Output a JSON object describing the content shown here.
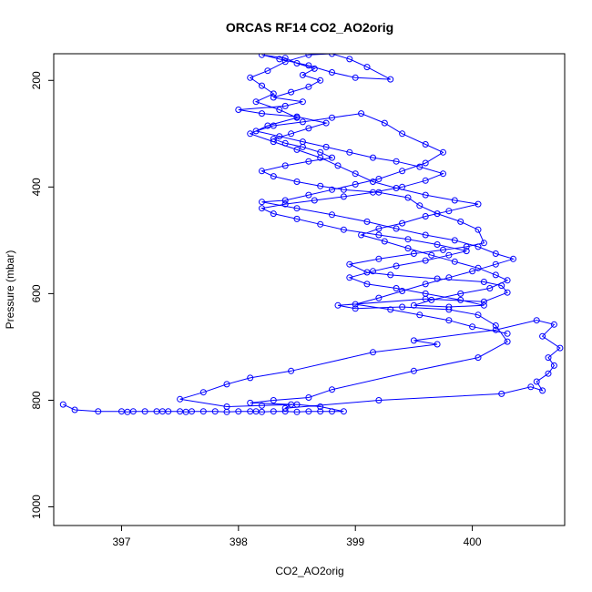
{
  "chart_data": {
    "type": "scatter",
    "title": "ORCAS RF14 CO2_AO2orig",
    "xlabel": "CO2_AO2orig",
    "ylabel": "Pressure (mbar)",
    "xlim": [
      396.42,
      400.79
    ],
    "ylim": [
      1035,
      150
    ],
    "y_axis_inverted": true,
    "x_ticks": [
      397,
      398,
      399,
      400
    ],
    "y_ticks": [
      200,
      400,
      600,
      800,
      1000
    ],
    "grid": false,
    "legend": "none",
    "marker": "open-circle",
    "connected": true,
    "series_color": "#0000ff",
    "series": [
      {
        "name": "",
        "points": [
          [
            396.5,
            808
          ],
          [
            396.6,
            818
          ],
          [
            396.8,
            821
          ],
          [
            397.0,
            821
          ],
          [
            397.05,
            822
          ],
          [
            397.1,
            821
          ],
          [
            397.2,
            821
          ],
          [
            397.3,
            821
          ],
          [
            397.35,
            821
          ],
          [
            397.4,
            821
          ],
          [
            397.5,
            821
          ],
          [
            397.55,
            822
          ],
          [
            397.6,
            821
          ],
          [
            397.7,
            821
          ],
          [
            397.8,
            821
          ],
          [
            397.9,
            822
          ],
          [
            398.0,
            821
          ],
          [
            398.1,
            821
          ],
          [
            398.15,
            821
          ],
          [
            398.2,
            822
          ],
          [
            398.3,
            821
          ],
          [
            398.4,
            821
          ],
          [
            398.5,
            822
          ],
          [
            398.6,
            821
          ],
          [
            398.7,
            821
          ],
          [
            398.8,
            821
          ],
          [
            398.9,
            821
          ],
          [
            398.7,
            812
          ],
          [
            398.5,
            808
          ],
          [
            398.2,
            810
          ],
          [
            397.9,
            812
          ],
          [
            397.5,
            798
          ],
          [
            397.7,
            785
          ],
          [
            397.9,
            770
          ],
          [
            398.1,
            758
          ],
          [
            398.45,
            745
          ],
          [
            399.15,
            710
          ],
          [
            399.7,
            695
          ],
          [
            399.5,
            688
          ],
          [
            400.2,
            668
          ],
          [
            400.55,
            650
          ],
          [
            400.7,
            658
          ],
          [
            400.6,
            680
          ],
          [
            400.75,
            702
          ],
          [
            400.65,
            720
          ],
          [
            400.7,
            735
          ],
          [
            400.65,
            750
          ],
          [
            400.55,
            765
          ],
          [
            400.6,
            782
          ],
          [
            400.5,
            775
          ],
          [
            400.25,
            788
          ],
          [
            399.2,
            800
          ],
          [
            398.4,
            815
          ],
          [
            398.45,
            808
          ],
          [
            398.1,
            805
          ],
          [
            398.3,
            800
          ],
          [
            398.6,
            795
          ],
          [
            398.8,
            780
          ],
          [
            399.5,
            745
          ],
          [
            400.05,
            720
          ],
          [
            400.3,
            690
          ],
          [
            400.2,
            660
          ],
          [
            400.05,
            640
          ],
          [
            399.8,
            630
          ],
          [
            399.4,
            625
          ],
          [
            399.0,
            628
          ],
          [
            398.85,
            622
          ],
          [
            399.6,
            610
          ],
          [
            400.1,
            615
          ],
          [
            400.3,
            598
          ],
          [
            400.25,
            585
          ],
          [
            400.1,
            578
          ],
          [
            399.7,
            572
          ],
          [
            399.3,
            565
          ],
          [
            399.1,
            560
          ],
          [
            398.95,
            545
          ],
          [
            399.2,
            535
          ],
          [
            399.5,
            525
          ],
          [
            399.75,
            518
          ],
          [
            399.95,
            512
          ],
          [
            400.1,
            505
          ],
          [
            400.05,
            480
          ],
          [
            399.9,
            465
          ],
          [
            399.7,
            450
          ],
          [
            399.55,
            435
          ],
          [
            399.45,
            420
          ],
          [
            399.2,
            410
          ],
          [
            398.9,
            405
          ],
          [
            398.7,
            398
          ],
          [
            398.5,
            390
          ],
          [
            398.3,
            380
          ],
          [
            398.2,
            370
          ],
          [
            398.4,
            360
          ],
          [
            398.6,
            352
          ],
          [
            398.8,
            345
          ],
          [
            398.7,
            335
          ],
          [
            398.55,
            325
          ],
          [
            398.4,
            318
          ],
          [
            398.3,
            310
          ],
          [
            398.45,
            300
          ],
          [
            398.6,
            290
          ],
          [
            398.75,
            280
          ],
          [
            398.5,
            268
          ],
          [
            398.2,
            262
          ],
          [
            398.0,
            255
          ],
          [
            398.4,
            248
          ],
          [
            398.55,
            240
          ],
          [
            398.3,
            232
          ],
          [
            398.45,
            222
          ],
          [
            398.6,
            212
          ],
          [
            398.7,
            200
          ],
          [
            398.55,
            190
          ],
          [
            398.65,
            178
          ],
          [
            398.5,
            168
          ],
          [
            398.4,
            158
          ],
          [
            398.2,
            152
          ],
          [
            398.35,
            160
          ],
          [
            398.6,
            172
          ],
          [
            398.8,
            185
          ],
          [
            399.0,
            195
          ],
          [
            399.3,
            198
          ],
          [
            399.1,
            175
          ],
          [
            398.95,
            160
          ],
          [
            398.8,
            150
          ],
          [
            398.6,
            152
          ],
          [
            398.4,
            165
          ],
          [
            398.25,
            182
          ],
          [
            398.1,
            195
          ],
          [
            398.2,
            210
          ],
          [
            398.3,
            225
          ],
          [
            398.15,
            240
          ],
          [
            398.35,
            255
          ],
          [
            398.5,
            270
          ],
          [
            398.25,
            285
          ],
          [
            398.1,
            300
          ],
          [
            398.3,
            315
          ],
          [
            398.5,
            330
          ],
          [
            398.7,
            345
          ],
          [
            398.85,
            360
          ],
          [
            399.0,
            375
          ],
          [
            399.15,
            390
          ],
          [
            399.35,
            402
          ],
          [
            399.6,
            415
          ],
          [
            399.85,
            425
          ],
          [
            400.05,
            432
          ],
          [
            399.8,
            445
          ],
          [
            399.6,
            455
          ],
          [
            399.4,
            468
          ],
          [
            399.2,
            478
          ],
          [
            399.05,
            490
          ],
          [
            399.25,
            502
          ],
          [
            399.45,
            515
          ],
          [
            399.65,
            528
          ],
          [
            399.85,
            540
          ],
          [
            400.05,
            552
          ],
          [
            400.2,
            565
          ],
          [
            400.3,
            575
          ],
          [
            400.15,
            590
          ],
          [
            399.9,
            600
          ],
          [
            399.65,
            612
          ],
          [
            399.5,
            622
          ],
          [
            399.8,
            625
          ],
          [
            400.1,
            622
          ],
          [
            399.9,
            612
          ],
          [
            399.6,
            600
          ],
          [
            399.35,
            590
          ],
          [
            399.1,
            582
          ],
          [
            398.95,
            570
          ],
          [
            399.15,
            558
          ],
          [
            399.35,
            548
          ],
          [
            399.6,
            538
          ],
          [
            399.8,
            528
          ],
          [
            399.95,
            520
          ],
          [
            399.7,
            508
          ],
          [
            399.45,
            498
          ],
          [
            399.2,
            490
          ],
          [
            398.9,
            480
          ],
          [
            398.7,
            470
          ],
          [
            398.5,
            460
          ],
          [
            398.3,
            450
          ],
          [
            398.2,
            440
          ],
          [
            398.4,
            432
          ],
          [
            398.65,
            425
          ],
          [
            398.9,
            418
          ],
          [
            399.15,
            410
          ],
          [
            399.4,
            400
          ],
          [
            399.6,
            388
          ],
          [
            399.75,
            375
          ],
          [
            399.55,
            362
          ],
          [
            399.35,
            352
          ],
          [
            399.15,
            345
          ],
          [
            398.95,
            335
          ],
          [
            398.75,
            325
          ],
          [
            398.55,
            315
          ],
          [
            398.35,
            305
          ],
          [
            398.15,
            295
          ],
          [
            398.3,
            285
          ],
          [
            398.55,
            278
          ],
          [
            398.8,
            270
          ],
          [
            399.05,
            262
          ],
          [
            399.25,
            280
          ],
          [
            399.4,
            300
          ],
          [
            399.6,
            320
          ],
          [
            399.75,
            335
          ],
          [
            399.6,
            355
          ],
          [
            399.4,
            370
          ],
          [
            399.2,
            385
          ],
          [
            399.0,
            395
          ],
          [
            398.8,
            405
          ],
          [
            398.6,
            415
          ],
          [
            398.4,
            425
          ],
          [
            398.2,
            428
          ],
          [
            398.5,
            440
          ],
          [
            398.8,
            452
          ],
          [
            399.1,
            465
          ],
          [
            399.35,
            478
          ],
          [
            399.6,
            490
          ],
          [
            399.85,
            500
          ],
          [
            400.05,
            512
          ],
          [
            400.2,
            525
          ],
          [
            400.35,
            535
          ],
          [
            400.2,
            545
          ],
          [
            400.0,
            558
          ],
          [
            399.8,
            570
          ],
          [
            399.6,
            582
          ],
          [
            399.4,
            595
          ],
          [
            399.2,
            608
          ],
          [
            399.0,
            620
          ],
          [
            399.3,
            630
          ],
          [
            399.55,
            640
          ],
          [
            399.8,
            650
          ],
          [
            400.0,
            662
          ],
          [
            400.3,
            675
          ]
        ]
      }
    ]
  }
}
